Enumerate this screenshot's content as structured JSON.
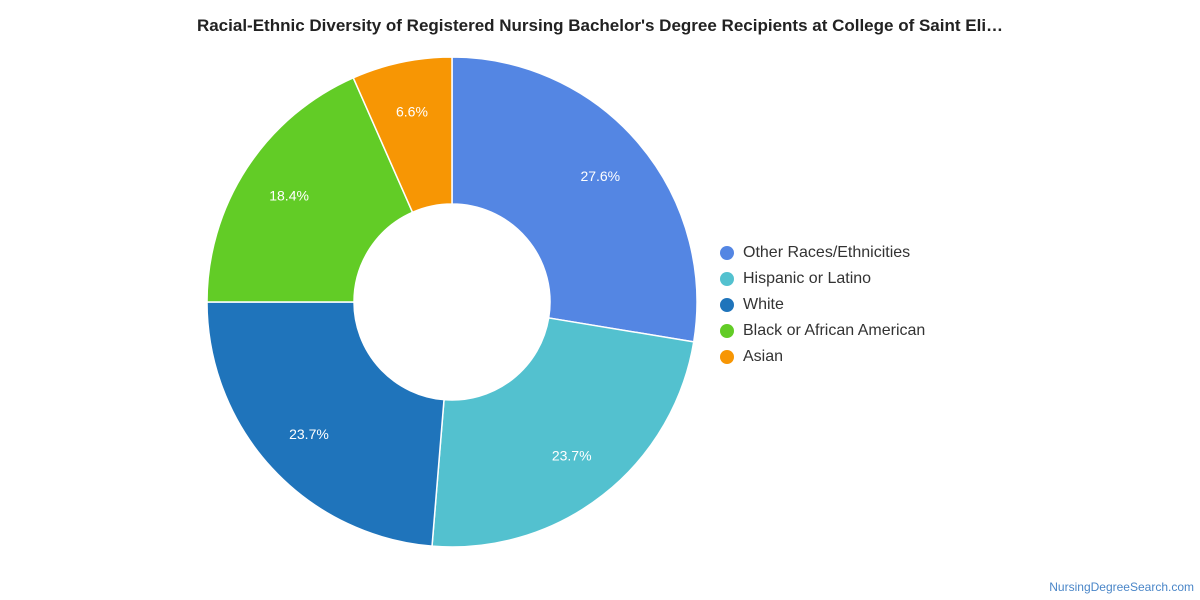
{
  "chart_data": {
    "type": "pie",
    "title": "Racial-Ethnic Diversity of Registered Nursing Bachelor's Degree Recipients at College of Saint Eli…",
    "donut": true,
    "slices": [
      {
        "label": "Other Races/Ethnicities",
        "value": 27.6,
        "display": "27.6%",
        "color": "#5486e3"
      },
      {
        "label": "Hispanic or Latino",
        "value": 23.7,
        "display": "23.7%",
        "color": "#53c1cf"
      },
      {
        "label": "White",
        "value": 23.7,
        "display": "23.7%",
        "color": "#1f74bb"
      },
      {
        "label": "Black or African American",
        "value": 18.4,
        "display": "18.4%",
        "color": "#62cc26"
      },
      {
        "label": "Asian",
        "value": 6.6,
        "display": "6.6%",
        "color": "#f79604"
      }
    ],
    "legend_position": "right"
  },
  "watermark": "NursingDegreeSearch.com"
}
